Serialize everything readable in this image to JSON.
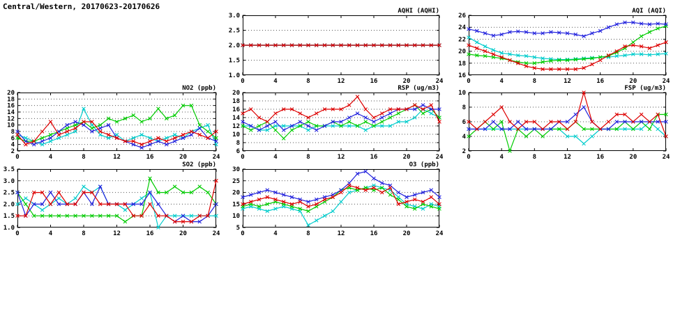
{
  "page": {
    "title": "Central/Western, 20170623-20170626"
  },
  "colors": {
    "red": "#dd0000",
    "blue": "#2222dd",
    "green": "#00cc00",
    "cyan": "#00cccc"
  },
  "chart_data": [
    {
      "id": "aqhi",
      "type": "line",
      "title": "AQHI (AQHI)",
      "xlim": [
        0,
        24
      ],
      "xticks": [
        0,
        4,
        8,
        12,
        16,
        20,
        24
      ],
      "xtick_labels": [
        "0",
        "4",
        "8",
        "12",
        "16",
        "20",
        "24"
      ],
      "ylim": [
        1.0,
        3.0
      ],
      "yticks": [
        1.0,
        1.5,
        2.0,
        2.5,
        3.0
      ],
      "ytick_labels": [
        "1.0",
        "1.5",
        "2.0",
        "2.5",
        "3.0"
      ],
      "x_start": 0,
      "x_step": 1,
      "x_unit": "hour",
      "grid": "horizontal-dotted",
      "legend": "none",
      "series": [
        {
          "name": "red",
          "values": [
            2,
            2,
            2,
            2,
            2,
            2,
            2,
            2,
            2,
            2,
            2,
            2,
            2,
            2,
            2,
            2,
            2,
            2,
            2,
            2,
            2,
            2,
            2,
            2,
            2
          ]
        },
        {
          "name": "blue",
          "values": [
            2,
            2,
            2,
            2,
            2,
            2,
            2,
            2,
            2,
            2,
            2,
            2,
            2,
            2,
            2,
            2,
            2,
            2,
            2,
            2,
            2,
            2,
            2,
            2,
            2
          ]
        },
        {
          "name": "green",
          "values": [
            2,
            2,
            2,
            2,
            2,
            2,
            2,
            2,
            2,
            2,
            2,
            2,
            2,
            2,
            2,
            2,
            2,
            2,
            2,
            2,
            2,
            2,
            2,
            2,
            2
          ]
        },
        {
          "name": "cyan",
          "values": [
            2,
            2,
            2,
            2,
            2,
            2,
            2,
            2,
            2,
            2,
            2,
            2,
            2,
            2,
            2,
            2,
            2,
            2,
            2,
            2,
            2,
            2,
            2,
            2,
            2
          ]
        }
      ]
    },
    {
      "id": "aqi",
      "type": "line",
      "title": "AQI (AQI)",
      "xlim": [
        0,
        24
      ],
      "xticks": [
        0,
        4,
        8,
        12,
        16,
        20,
        24
      ],
      "xtick_labels": [
        "0",
        "4",
        "8",
        "12",
        "16",
        "20",
        "24"
      ],
      "ylim": [
        16,
        26
      ],
      "yticks": [
        16,
        18,
        20,
        22,
        24,
        26
      ],
      "ytick_labels": [
        "16",
        "18",
        "20",
        "22",
        "24",
        "26"
      ],
      "x_start": 0,
      "x_step": 1,
      "x_unit": "hour",
      "grid": "horizontal-dotted",
      "legend": "none",
      "series": [
        {
          "name": "red",
          "values": [
            21,
            20.5,
            20,
            19.5,
            19,
            18.5,
            18,
            17.5,
            17.2,
            17,
            17,
            17,
            17,
            17,
            17.2,
            17.8,
            18.5,
            19.3,
            20,
            20.8,
            21,
            20.8,
            20.5,
            21,
            21.5
          ]
        },
        {
          "name": "blue",
          "values": [
            23.7,
            23.4,
            23,
            22.6,
            22.8,
            23.2,
            23.3,
            23.2,
            23,
            23,
            23.2,
            23.1,
            23,
            22.8,
            22.5,
            23,
            23.4,
            24,
            24.5,
            24.8,
            24.8,
            24.6,
            24.5,
            24.6,
            24.5
          ]
        },
        {
          "name": "green",
          "values": [
            19.5,
            19.3,
            19.2,
            19,
            18.8,
            18.5,
            18.2,
            18,
            18,
            18.2,
            18.4,
            18.5,
            18.5,
            18.6,
            18.7,
            18.8,
            19,
            19.2,
            19.8,
            20.5,
            21.5,
            22.5,
            23.2,
            23.8,
            24.2
          ]
        },
        {
          "name": "cyan",
          "values": [
            22.3,
            21.5,
            20.8,
            20.2,
            19.7,
            19.5,
            19.3,
            19.2,
            19,
            18.8,
            18.7,
            18.6,
            18.6,
            18.7,
            18.8,
            18.9,
            19,
            19,
            19.2,
            19.3,
            19.5,
            19.5,
            19.4,
            19.5,
            19.6
          ]
        }
      ]
    },
    {
      "id": "no2",
      "type": "line",
      "title": "NO2 (ppb)",
      "xlim": [
        0,
        24
      ],
      "xticks": [
        0,
        4,
        8,
        12,
        16,
        20,
        24
      ],
      "xtick_labels": [
        "0",
        "4",
        "8",
        "12",
        "16",
        "20",
        "24"
      ],
      "ylim": [
        2,
        20
      ],
      "yticks": [
        2,
        4,
        6,
        8,
        10,
        12,
        14,
        16,
        18,
        20
      ],
      "ytick_labels": [
        "2",
        "4",
        "6",
        "8",
        "10",
        "12",
        "14",
        "16",
        "18",
        "20"
      ],
      "x_start": 0,
      "x_step": 1,
      "x_unit": "hour",
      "grid": "horizontal-dotted",
      "legend": "none",
      "series": [
        {
          "name": "red",
          "values": [
            7,
            4,
            5,
            8,
            11,
            7,
            8,
            9,
            11,
            11,
            8,
            7,
            6,
            5,
            5,
            4,
            5,
            6,
            5,
            6,
            7,
            8,
            7,
            6,
            8
          ]
        },
        {
          "name": "blue",
          "values": [
            8,
            5,
            4,
            5,
            6,
            8,
            10,
            11,
            10,
            8,
            9,
            10,
            6,
            5,
            4,
            3,
            4,
            5,
            4,
            5,
            6,
            7,
            9,
            6,
            5
          ]
        },
        {
          "name": "green",
          "values": [
            6,
            5,
            5,
            6,
            7,
            8,
            9,
            10,
            11,
            9,
            10,
            12,
            11,
            12,
            13,
            11,
            12,
            15,
            12,
            13,
            16,
            16,
            10,
            8,
            6
          ]
        },
        {
          "name": "cyan",
          "values": [
            7,
            6,
            5,
            4,
            5,
            6,
            7,
            8,
            15,
            10,
            7,
            6,
            7,
            5,
            6,
            7,
            6,
            5,
            6,
            7,
            6,
            8,
            9,
            10,
            4
          ]
        }
      ]
    },
    {
      "id": "rsp",
      "type": "line",
      "title": "RSP (ug/m3)",
      "xlim": [
        0,
        24
      ],
      "xticks": [
        0,
        4,
        8,
        12,
        16,
        20,
        24
      ],
      "xtick_labels": [
        "0",
        "4",
        "8",
        "12",
        "16",
        "20",
        "24"
      ],
      "ylim": [
        6,
        20
      ],
      "yticks": [
        6,
        8,
        10,
        12,
        14,
        16,
        18,
        20
      ],
      "ytick_labels": [
        "6",
        "8",
        "10",
        "12",
        "14",
        "16",
        "18",
        "20"
      ],
      "x_start": 0,
      "x_step": 1,
      "x_unit": "hour",
      "grid": "horizontal-dotted",
      "legend": "none",
      "series": [
        {
          "name": "red",
          "values": [
            15,
            16,
            14,
            13,
            15,
            16,
            16,
            15,
            14,
            15,
            16,
            16,
            16,
            17,
            19,
            16,
            14,
            15,
            16,
            16,
            16,
            17,
            16,
            17,
            13
          ]
        },
        {
          "name": "blue",
          "values": [
            13,
            12,
            11,
            12,
            13,
            11,
            12,
            13,
            12,
            11,
            12,
            13,
            13,
            14,
            15,
            14,
            13,
            14,
            15,
            16,
            16,
            16,
            17,
            16,
            16
          ]
        },
        {
          "name": "green",
          "values": [
            12,
            11,
            12,
            13,
            11,
            9,
            11,
            12,
            13,
            12,
            12,
            13,
            12,
            13,
            12,
            13,
            12,
            13,
            14,
            15,
            16,
            17,
            15,
            16,
            14
          ]
        },
        {
          "name": "cyan",
          "values": [
            12,
            12,
            11,
            11,
            12,
            12,
            12,
            12,
            11,
            12,
            12,
            12,
            12,
            12,
            12,
            11,
            12,
            12,
            12,
            13,
            13,
            14,
            16,
            15,
            14
          ]
        }
      ]
    },
    {
      "id": "fsp",
      "type": "line",
      "title": "FSP (ug/m3)",
      "xlim": [
        0,
        24
      ],
      "xticks": [
        0,
        4,
        8,
        12,
        16,
        20,
        24
      ],
      "xtick_labels": [
        "0",
        "4",
        "8",
        "12",
        "16",
        "20",
        "24"
      ],
      "ylim": [
        2,
        10
      ],
      "yticks": [
        2,
        4,
        6,
        8,
        10
      ],
      "ytick_labels": [
        "2",
        "4",
        "6",
        "8",
        "10"
      ],
      "x_start": 0,
      "x_step": 1,
      "x_unit": "hour",
      "grid": "horizontal-dotted",
      "legend": "none",
      "series": [
        {
          "name": "red",
          "values": [
            6,
            5,
            6,
            7,
            8,
            6,
            5,
            6,
            6,
            5,
            6,
            6,
            5,
            6,
            10,
            6,
            5,
            6,
            7,
            7,
            6,
            7,
            6,
            7,
            4
          ]
        },
        {
          "name": "blue",
          "values": [
            5,
            5,
            5,
            6,
            5,
            5,
            6,
            5,
            5,
            5,
            5,
            6,
            6,
            7,
            8,
            6,
            5,
            5,
            6,
            6,
            6,
            6,
            6,
            6,
            6
          ]
        },
        {
          "name": "green",
          "values": [
            4,
            5,
            6,
            5,
            6,
            2,
            5,
            4,
            5,
            4,
            5,
            5,
            5,
            6,
            5,
            5,
            5,
            5,
            5,
            6,
            5,
            6,
            5,
            7,
            7
          ]
        },
        {
          "name": "cyan",
          "values": [
            5,
            5,
            5,
            5,
            5,
            5,
            5,
            5,
            5,
            5,
            5,
            5,
            4,
            4,
            3,
            4,
            5,
            5,
            5,
            5,
            5,
            5,
            6,
            5,
            4
          ]
        }
      ]
    },
    {
      "id": "so2",
      "type": "line",
      "title": "SO2 (ppb)",
      "xlim": [
        0,
        24
      ],
      "xticks": [
        0,
        4,
        8,
        12,
        16,
        20,
        24
      ],
      "xtick_labels": [
        "0",
        "4",
        "8",
        "12",
        "16",
        "20",
        "24"
      ],
      "ylim": [
        1.0,
        3.5
      ],
      "yticks": [
        1.0,
        1.5,
        2.0,
        2.5,
        3.0,
        3.5
      ],
      "ytick_labels": [
        "1.0",
        "1.5",
        "2.0",
        "2.5",
        "3.0",
        "3.5"
      ],
      "x_start": 0,
      "x_step": 1,
      "x_unit": "hour",
      "grid": "horizontal-dotted",
      "legend": "none",
      "series": [
        {
          "name": "red",
          "values": [
            1.5,
            1.5,
            2.5,
            2.5,
            2.0,
            2.5,
            2.0,
            2.0,
            2.5,
            2.5,
            2.0,
            2.0,
            2.0,
            2.0,
            1.5,
            1.5,
            2.0,
            1.5,
            1.5,
            1.25,
            1.25,
            1.25,
            1.5,
            1.5,
            3.0
          ]
        },
        {
          "name": "blue",
          "values": [
            2.5,
            1.5,
            2.0,
            2.0,
            2.5,
            2.0,
            2.0,
            2.0,
            2.5,
            2.0,
            2.75,
            2.0,
            2.0,
            2.0,
            2.0,
            2.0,
            2.5,
            2.0,
            1.5,
            1.25,
            1.5,
            1.25,
            1.25,
            1.5,
            2.0
          ]
        },
        {
          "name": "green",
          "values": [
            2.5,
            2.0,
            1.5,
            1.5,
            1.5,
            1.5,
            1.5,
            1.5,
            1.5,
            1.5,
            1.5,
            1.5,
            1.5,
            1.25,
            1.5,
            1.5,
            3.1,
            2.5,
            2.5,
            2.75,
            2.5,
            2.5,
            2.75,
            2.5,
            2.0
          ]
        },
        {
          "name": "cyan",
          "values": [
            2.0,
            2.25,
            2.0,
            1.75,
            2.0,
            2.25,
            2.0,
            2.25,
            2.75,
            2.5,
            2.75,
            2.0,
            2.0,
            1.75,
            2.0,
            2.25,
            2.5,
            1.0,
            1.5,
            1.5,
            1.5,
            1.5,
            1.5,
            1.5,
            1.5
          ]
        }
      ]
    },
    {
      "id": "o3",
      "type": "line",
      "title": "O3 (ppb)",
      "xlim": [
        0,
        24
      ],
      "xticks": [
        0,
        4,
        8,
        12,
        16,
        20,
        24
      ],
      "xtick_labels": [
        "0",
        "4",
        "8",
        "12",
        "16",
        "20",
        "24"
      ],
      "ylim": [
        5,
        30
      ],
      "yticks": [
        5,
        10,
        15,
        20,
        25,
        30
      ],
      "ytick_labels": [
        "5",
        "10",
        "15",
        "20",
        "25",
        "30"
      ],
      "x_start": 0,
      "x_step": 1,
      "x_unit": "hour",
      "grid": "horizontal-dotted",
      "legend": "none",
      "series": [
        {
          "name": "red",
          "values": [
            15,
            16,
            17,
            18,
            17,
            16,
            15,
            16,
            14,
            15,
            17,
            18,
            20,
            23,
            22,
            21,
            22,
            20,
            22,
            15,
            16,
            17,
            16,
            18,
            15
          ]
        },
        {
          "name": "blue",
          "values": [
            18,
            19,
            20,
            21,
            20,
            19,
            18,
            17,
            16,
            17,
            18,
            19,
            21,
            24,
            28,
            29,
            26,
            24,
            23,
            20,
            18,
            19,
            20,
            21,
            18
          ]
        },
        {
          "name": "green",
          "values": [
            14,
            15,
            14,
            15,
            16,
            15,
            14,
            13,
            12,
            14,
            16,
            18,
            21,
            22,
            21,
            22,
            21,
            22,
            19,
            17,
            14,
            13,
            15,
            14,
            13
          ]
        },
        {
          "name": "cyan",
          "values": [
            13,
            14,
            13,
            12,
            13,
            14,
            13,
            12,
            6,
            8,
            10,
            12,
            16,
            20,
            21,
            22,
            23,
            22,
            21,
            18,
            15,
            14,
            13,
            15,
            14
          ]
        }
      ]
    }
  ]
}
